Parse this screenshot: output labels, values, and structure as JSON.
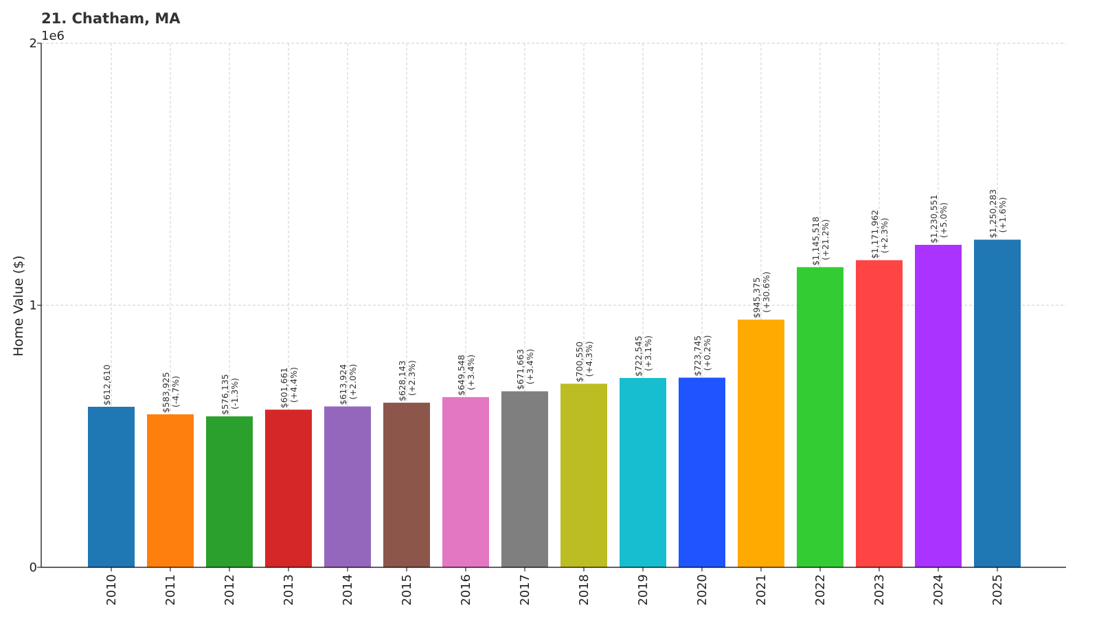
{
  "chart_data": {
    "type": "bar",
    "title": "21. Chatham, MA",
    "ylabel": "Home Value ($)",
    "xlabel": "",
    "y_offset_label": "1e6",
    "ylim": [
      0,
      2000000
    ],
    "yticks": [
      0,
      1000000,
      2000000
    ],
    "ytick_labels": [
      "0",
      "1",
      "2"
    ],
    "grid": true,
    "categories": [
      "2010",
      "2011",
      "2012",
      "2013",
      "2014",
      "2015",
      "2016",
      "2017",
      "2018",
      "2019",
      "2020",
      "2021",
      "2022",
      "2023",
      "2024",
      "2025"
    ],
    "values": [
      612610,
      583925,
      576135,
      601661,
      613924,
      628143,
      649548,
      671663,
      700550,
      722545,
      723745,
      945375,
      1145518,
      1171962,
      1230551,
      1250283
    ],
    "value_labels": [
      "$612,610",
      "$583,925",
      "$576,135",
      "$601,661",
      "$613,924",
      "$628,143",
      "$649,548",
      "$671,663",
      "$700,550",
      "$722,545",
      "$723,745",
      "$945,375",
      "$1,145,518",
      "$1,171,962",
      "$1,230,551",
      "$1,250,283"
    ],
    "change_labels": [
      "",
      "(-4.7%)",
      "(-1.3%)",
      "(+4.4%)",
      "(+2.0%)",
      "(+2.3%)",
      "(+3.4%)",
      "(+3.4%)",
      "(+4.3%)",
      "(+3.1%)",
      "(+0.2%)",
      "(+30.6%)",
      "(+21.2%)",
      "(+2.3%)",
      "(+5.0%)",
      "(+1.6%)"
    ],
    "colors": [
      "#1f77b4",
      "#ff7f0e",
      "#2ca02c",
      "#d62728",
      "#9467bd",
      "#8c564b",
      "#e377c2",
      "#7f7f7f",
      "#bcbd22",
      "#17becf",
      "#1f55ff",
      "#ffaa00",
      "#33cc33",
      "#ff4444",
      "#aa33ff",
      "#1f77b4"
    ]
  }
}
